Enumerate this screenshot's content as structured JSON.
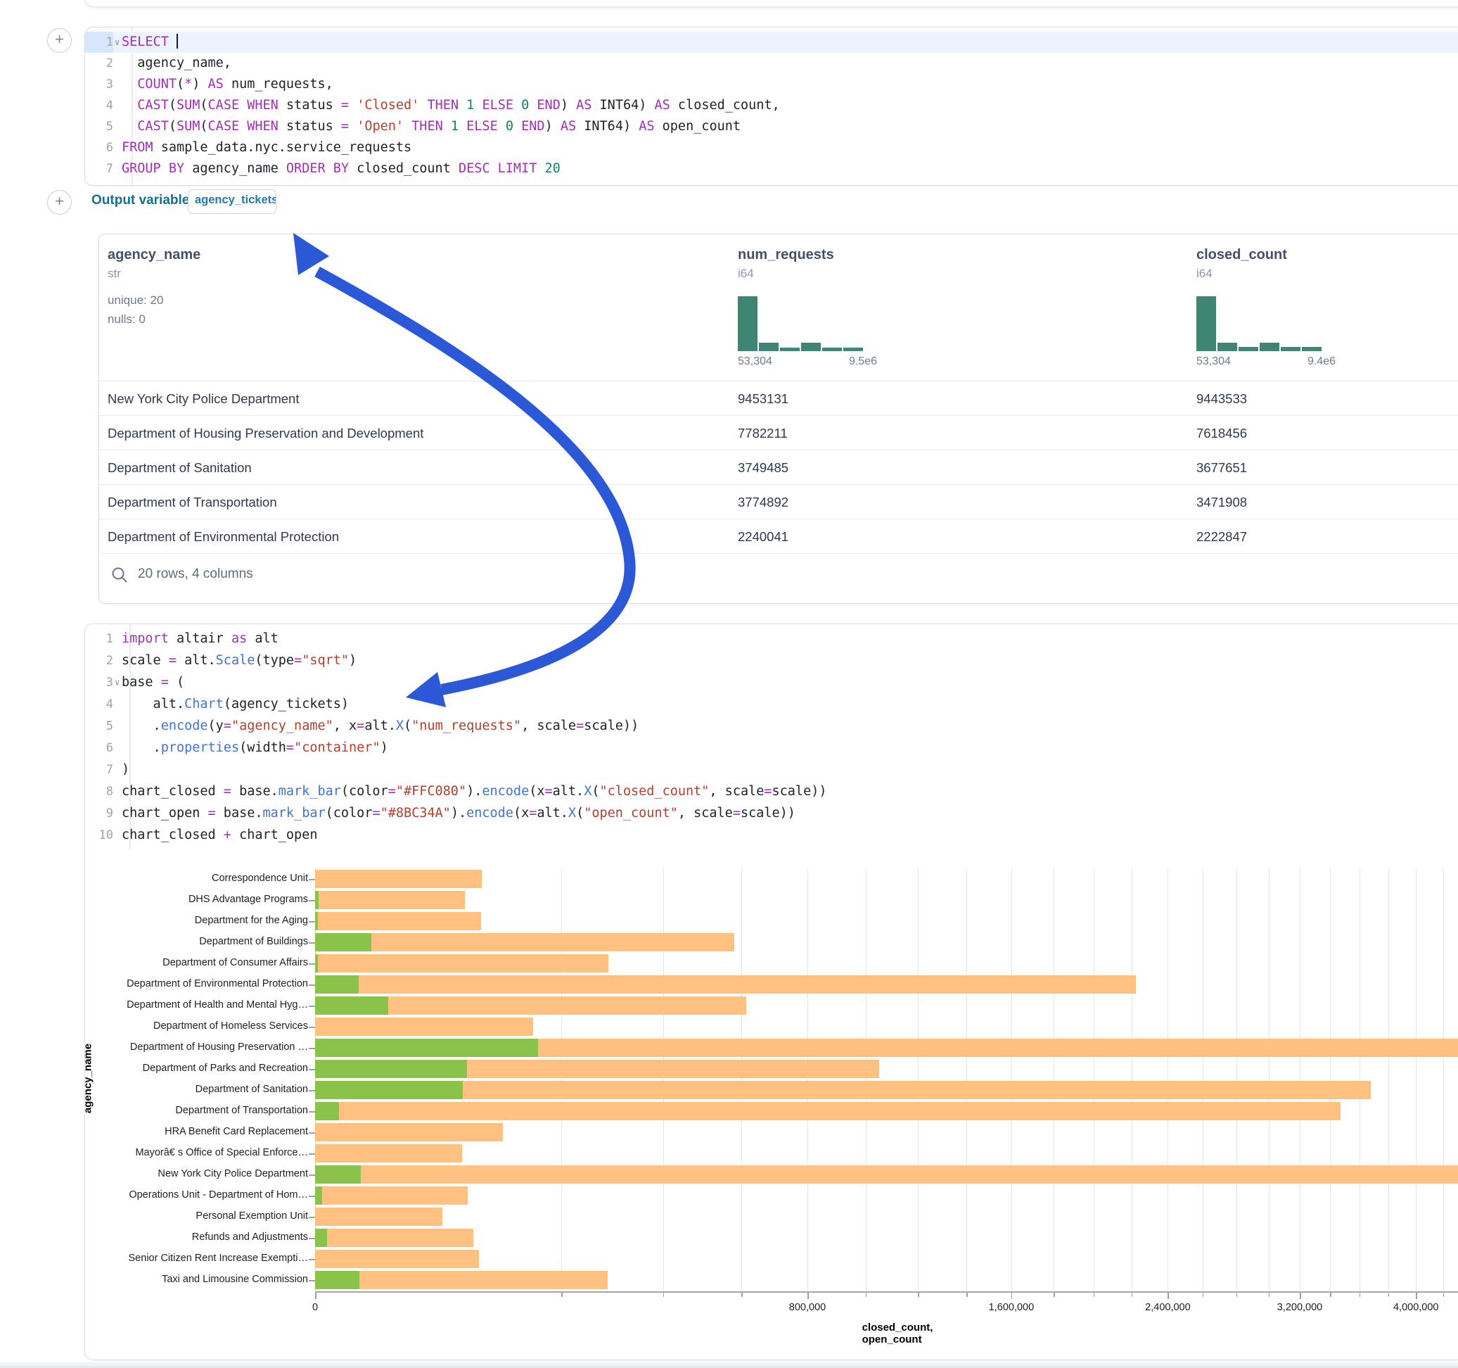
{
  "output": {
    "label": "Output variable:",
    "variable": "agency_tickets"
  },
  "sql_cell": {
    "folded_line": 1,
    "cursor_line": 1,
    "lines": [
      [
        [
          "k",
          "SELECT"
        ],
        [
          "p",
          " "
        ]
      ],
      [
        [
          "p",
          "  agency_name,"
        ]
      ],
      [
        [
          "p",
          "  "
        ],
        [
          "k",
          "COUNT"
        ],
        [
          "p",
          "("
        ],
        [
          "o",
          "*"
        ],
        [
          "p",
          ") "
        ],
        [
          "k",
          "AS"
        ],
        [
          "p",
          " num_requests,"
        ]
      ],
      [
        [
          "p",
          "  "
        ],
        [
          "k",
          "CAST"
        ],
        [
          "p",
          "("
        ],
        [
          "k",
          "SUM"
        ],
        [
          "p",
          "("
        ],
        [
          "k",
          "CASE"
        ],
        [
          "p",
          " "
        ],
        [
          "k",
          "WHEN"
        ],
        [
          "p",
          " status "
        ],
        [
          "o",
          "="
        ],
        [
          "p",
          " "
        ],
        [
          "s",
          "'Closed'"
        ],
        [
          "p",
          " "
        ],
        [
          "k",
          "THEN"
        ],
        [
          "p",
          " "
        ],
        [
          "n",
          "1"
        ],
        [
          "p",
          " "
        ],
        [
          "k",
          "ELSE"
        ],
        [
          "p",
          " "
        ],
        [
          "n",
          "0"
        ],
        [
          "p",
          " "
        ],
        [
          "k",
          "END"
        ],
        [
          "p",
          ") "
        ],
        [
          "k",
          "AS"
        ],
        [
          "p",
          " INT64) "
        ],
        [
          "k",
          "AS"
        ],
        [
          "p",
          " closed_count,"
        ]
      ],
      [
        [
          "p",
          "  "
        ],
        [
          "k",
          "CAST"
        ],
        [
          "p",
          "("
        ],
        [
          "k",
          "SUM"
        ],
        [
          "p",
          "("
        ],
        [
          "k",
          "CASE"
        ],
        [
          "p",
          " "
        ],
        [
          "k",
          "WHEN"
        ],
        [
          "p",
          " status "
        ],
        [
          "o",
          "="
        ],
        [
          "p",
          " "
        ],
        [
          "s",
          "'Open'"
        ],
        [
          "p",
          " "
        ],
        [
          "k",
          "THEN"
        ],
        [
          "p",
          " "
        ],
        [
          "n",
          "1"
        ],
        [
          "p",
          " "
        ],
        [
          "k",
          "ELSE"
        ],
        [
          "p",
          " "
        ],
        [
          "n",
          "0"
        ],
        [
          "p",
          " "
        ],
        [
          "k",
          "END"
        ],
        [
          "p",
          ") "
        ],
        [
          "k",
          "AS"
        ],
        [
          "p",
          " INT64) "
        ],
        [
          "k",
          "AS"
        ],
        [
          "p",
          " open_count"
        ]
      ],
      [
        [
          "k",
          "FROM"
        ],
        [
          "p",
          " sample_data.nyc.service_requests"
        ]
      ],
      [
        [
          "k",
          "GROUP BY"
        ],
        [
          "p",
          " agency_name "
        ],
        [
          "k",
          "ORDER BY"
        ],
        [
          "p",
          " closed_count "
        ],
        [
          "k",
          "DESC"
        ],
        [
          "p",
          " "
        ],
        [
          "k",
          "LIMIT"
        ],
        [
          "p",
          " "
        ],
        [
          "n",
          "20"
        ]
      ]
    ]
  },
  "python_cell": {
    "folded_line": 3,
    "lines": [
      [
        [
          "k",
          "import"
        ],
        [
          "p",
          " altair "
        ],
        [
          "k",
          "as"
        ],
        [
          "p",
          " alt"
        ]
      ],
      [
        [
          "p",
          "scale "
        ],
        [
          "o",
          "="
        ],
        [
          "p",
          " alt."
        ],
        [
          "f",
          "Scale"
        ],
        [
          "p",
          "(type"
        ],
        [
          "o",
          "="
        ],
        [
          "s",
          "\"sqrt\""
        ],
        [
          "p",
          ")"
        ]
      ],
      [
        [
          "p",
          "base "
        ],
        [
          "o",
          "="
        ],
        [
          "p",
          " ("
        ]
      ],
      [
        [
          "p",
          "    alt."
        ],
        [
          "f",
          "Chart"
        ],
        [
          "p",
          "(agency_tickets)"
        ]
      ],
      [
        [
          "p",
          "    ."
        ],
        [
          "f",
          "encode"
        ],
        [
          "p",
          "(y"
        ],
        [
          "o",
          "="
        ],
        [
          "s",
          "\"agency_name\""
        ],
        [
          "p",
          ", x"
        ],
        [
          "o",
          "="
        ],
        [
          "p",
          "alt."
        ],
        [
          "f",
          "X"
        ],
        [
          "p",
          "("
        ],
        [
          "s",
          "\"num_requests\""
        ],
        [
          "p",
          ", scale"
        ],
        [
          "o",
          "="
        ],
        [
          "p",
          "scale))"
        ]
      ],
      [
        [
          "p",
          "    ."
        ],
        [
          "f",
          "properties"
        ],
        [
          "p",
          "(width"
        ],
        [
          "o",
          "="
        ],
        [
          "s",
          "\"container\""
        ],
        [
          "p",
          ")"
        ]
      ],
      [
        [
          "p",
          ")"
        ]
      ],
      [
        [
          "p",
          "chart_closed "
        ],
        [
          "o",
          "="
        ],
        [
          "p",
          " base."
        ],
        [
          "f",
          "mark_bar"
        ],
        [
          "p",
          "(color"
        ],
        [
          "o",
          "="
        ],
        [
          "s",
          "\"#FFC080\""
        ],
        [
          "p",
          ")."
        ],
        [
          "f",
          "encode"
        ],
        [
          "p",
          "(x"
        ],
        [
          "o",
          "="
        ],
        [
          "p",
          "alt."
        ],
        [
          "f",
          "X"
        ],
        [
          "p",
          "("
        ],
        [
          "s",
          "\"closed_count\""
        ],
        [
          "p",
          ", scale"
        ],
        [
          "o",
          "="
        ],
        [
          "p",
          "scale))"
        ]
      ],
      [
        [
          "p",
          "chart_open "
        ],
        [
          "o",
          "="
        ],
        [
          "p",
          " base."
        ],
        [
          "f",
          "mark_bar"
        ],
        [
          "p",
          "(color"
        ],
        [
          "o",
          "="
        ],
        [
          "s",
          "\"#8BC34A\""
        ],
        [
          "p",
          ")."
        ],
        [
          "f",
          "encode"
        ],
        [
          "p",
          "(x"
        ],
        [
          "o",
          "="
        ],
        [
          "p",
          "alt."
        ],
        [
          "f",
          "X"
        ],
        [
          "p",
          "("
        ],
        [
          "s",
          "\"open_count\""
        ],
        [
          "p",
          ", scale"
        ],
        [
          "o",
          "="
        ],
        [
          "p",
          "scale))"
        ]
      ],
      [
        [
          "p",
          "chart_closed "
        ],
        [
          "o",
          "+"
        ],
        [
          "p",
          " chart_open"
        ]
      ]
    ]
  },
  "table": {
    "columns": [
      {
        "name": "agency_name",
        "type": "str",
        "stats": [
          "unique: 20",
          "nulls: 0"
        ]
      },
      {
        "name": "num_requests",
        "type": "i64",
        "hist": {
          "heights": [
            100,
            15,
            7,
            15,
            7,
            7
          ],
          "min_label": "53,304",
          "max_label": "9.5e6"
        }
      },
      {
        "name": "closed_count",
        "type": "i64",
        "hist": {
          "heights": [
            100,
            15,
            8,
            15,
            8,
            8
          ],
          "min_label": "53,304",
          "max_label": "9.4e6"
        }
      }
    ],
    "rows": [
      [
        "New York City Police Department",
        "9453131",
        "9443533"
      ],
      [
        "Department of Housing Preservation and Development",
        "7782211",
        "7618456"
      ],
      [
        "Department of Sanitation",
        "3749485",
        "3677651"
      ],
      [
        "Department of Transportation",
        "3774892",
        "3471908"
      ],
      [
        "Department of Environmental Protection",
        "2240041",
        "2222847"
      ]
    ],
    "footer": "20 rows, 4 columns"
  },
  "chart_data": {
    "type": "bar",
    "orientation": "horizontal",
    "x_scale": "sqrt",
    "grid": true,
    "xlabel": "closed_count, open_count",
    "ylabel": "agency_name",
    "x_tick_values": [
      0,
      800000,
      1600000,
      2400000,
      3200000,
      4000000
    ],
    "x_tick_labels": [
      "0",
      "800,000",
      "1,600,000",
      "2,400,000",
      "3,200,000",
      "4,000,000"
    ],
    "grid_step": 200000,
    "x_visible_max": 4400000,
    "categories": [
      "Correspondence Unit",
      "DHS Advantage Programs",
      "Department for the Aging",
      "Department of Buildings",
      "Department of Consumer Affairs",
      "Department of Environmental Protection",
      "Department of Health and Mental Hyg…",
      "Department of Homeless Services",
      "Department of Housing Preservation …",
      "Department of Parks and Recreation",
      "Department of Sanitation",
      "Department of Transportation",
      "HRA Benefit Card Replacement",
      "Mayorâ€ s Office of Special Enforce…",
      "New York City Police Department",
      "Operations Unit - Department of Hom…",
      "Personal Exemption Unit",
      "Refunds and Adjustments",
      "Senior Citizen Rent Increase Exempti…",
      "Taxi and Limousine Commission"
    ],
    "series": [
      {
        "name": "closed_count",
        "color": "#FFC080",
        "values": [
          92000,
          74000,
          91000,
          580000,
          284000,
          2222847,
          613000,
          157000,
          7618456,
          1050000,
          3677651,
          3471908,
          116000,
          71000,
          9443533,
          77000,
          53304,
          83000,
          89000,
          282000
        ]
      },
      {
        "name": "open_count",
        "color": "#8BC34A",
        "values": [
          0,
          40,
          30,
          10400,
          30,
          6300,
          17500,
          0,
          163755,
          76000,
          71834,
          1900,
          0,
          0,
          7000,
          160,
          0,
          480,
          0,
          6500
        ]
      }
    ]
  },
  "annotation_arrow": {
    "color": "#2b58d6"
  },
  "colors": {
    "hist_bar": "#3e8673",
    "keyword": "#a12fb4",
    "string": "#b3402e",
    "number": "#11855e",
    "method": "#4273d3"
  }
}
